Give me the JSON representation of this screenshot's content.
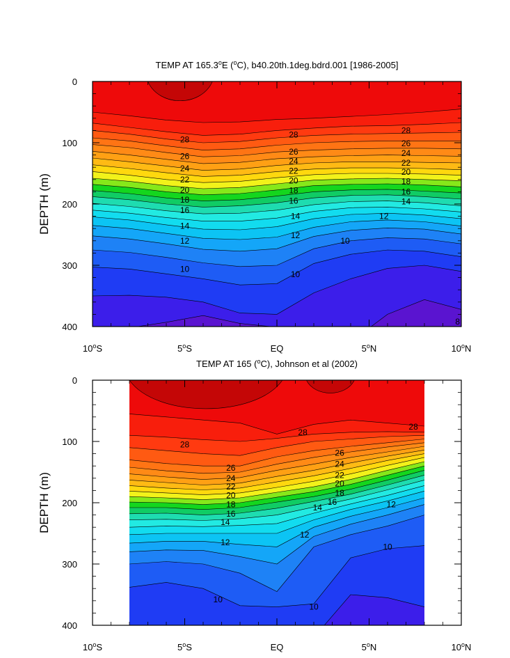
{
  "chart_data": [
    {
      "type": "contour",
      "title": "TEMP AT 165.3°E (°C), b40.20th.1deg.bdrd.001 [1986-2005]",
      "title_parts": {
        "pre": "TEMP AT 165.3",
        "sup1": "o",
        "mid": "E (",
        "sup2": "o",
        "post": "C), b40.20th.1deg.bdrd.001 [1986-2005]"
      },
      "ylabel": "DEPTH (m)",
      "xlim": [
        -10,
        10
      ],
      "ylim": [
        0,
        400
      ],
      "y_reversed": true,
      "data_xrange": [
        -10,
        10
      ],
      "y_ticks": [
        0,
        100,
        200,
        300,
        400
      ],
      "x_ticks": [
        {
          "value": -10,
          "num": "10",
          "hemi": "S"
        },
        {
          "value": -5,
          "num": "5",
          "hemi": "S"
        },
        {
          "value": 0,
          "num": "EQ",
          "hemi": ""
        },
        {
          "value": 5,
          "num": "5",
          "hemi": "N"
        },
        {
          "value": 10,
          "num": "10",
          "hemi": "N"
        }
      ],
      "contour_interval": 1,
      "contour_x": [
        -10,
        -8,
        -6,
        -4,
        -2,
        0,
        2,
        4,
        6,
        8,
        10
      ],
      "contour_levels": [
        {
          "level": 29,
          "depth": [
            50,
            56,
            63,
            67,
            66,
            62,
            60,
            57,
            54,
            50,
            45
          ]
        },
        {
          "level": 28,
          "depth": [
            68,
            75,
            82,
            88,
            86,
            80,
            76,
            73,
            72,
            70,
            67
          ]
        },
        {
          "level": 27,
          "depth": [
            80,
            86,
            94,
            100,
            98,
            92,
            88,
            86,
            85,
            84,
            83
          ]
        },
        {
          "level": 26,
          "depth": [
            92,
            97,
            105,
            112,
            110,
            104,
            100,
            98,
            97,
            97,
            97
          ]
        },
        {
          "level": 25,
          "depth": [
            103,
            108,
            116,
            123,
            121,
            115,
            112,
            110,
            109,
            109,
            110
          ]
        },
        {
          "level": 24,
          "depth": [
            114,
            120,
            127,
            134,
            132,
            126,
            123,
            121,
            120,
            121,
            122
          ]
        },
        {
          "level": 23,
          "depth": [
            125,
            131,
            138,
            145,
            143,
            137,
            133,
            131,
            131,
            132,
            133
          ]
        },
        {
          "level": 22,
          "depth": [
            136,
            142,
            149,
            155,
            153,
            147,
            143,
            141,
            141,
            142,
            144
          ]
        },
        {
          "level": 21,
          "depth": [
            147,
            153,
            160,
            165,
            163,
            157,
            152,
            150,
            150,
            151,
            153
          ]
        },
        {
          "level": 20,
          "depth": [
            158,
            163,
            170,
            175,
            173,
            167,
            161,
            159,
            158,
            160,
            162
          ]
        },
        {
          "level": 19,
          "depth": [
            168,
            173,
            180,
            185,
            183,
            177,
            170,
            168,
            167,
            169,
            172
          ]
        },
        {
          "level": 18,
          "depth": [
            178,
            183,
            190,
            195,
            193,
            187,
            180,
            177,
            176,
            179,
            182
          ]
        },
        {
          "level": 17,
          "depth": [
            188,
            193,
            200,
            205,
            203,
            198,
            190,
            186,
            185,
            188,
            192
          ]
        },
        {
          "level": 16,
          "depth": [
            199,
            204,
            211,
            216,
            215,
            210,
            201,
            196,
            195,
            198,
            203
          ]
        },
        {
          "level": 15,
          "depth": [
            210,
            215,
            222,
            228,
            228,
            223,
            212,
            206,
            205,
            208,
            213
          ]
        },
        {
          "level": 14,
          "depth": [
            221,
            226,
            234,
            241,
            242,
            237,
            224,
            217,
            215,
            218,
            224
          ]
        },
        {
          "level": 13,
          "depth": [
            235,
            240,
            248,
            256,
            258,
            254,
            238,
            229,
            226,
            229,
            236
          ]
        },
        {
          "level": 12,
          "depth": [
            252,
            257,
            265,
            274,
            277,
            273,
            253,
            243,
            239,
            241,
            249
          ]
        },
        {
          "level": 11,
          "depth": [
            275,
            279,
            287,
            296,
            302,
            300,
            273,
            260,
            255,
            257,
            265
          ]
        },
        {
          "level": 10,
          "depth": [
            303,
            306,
            314,
            322,
            332,
            330,
            297,
            282,
            275,
            277,
            286
          ]
        },
        {
          "level": 9,
          "depth": [
            350,
            349,
            352,
            360,
            378,
            380,
            345,
            322,
            305,
            300,
            310
          ]
        },
        {
          "level": 8,
          "depth": [
            405,
            402,
            393,
            382,
            395,
            401,
            408,
            440,
            380,
            356,
            372
          ]
        }
      ],
      "contour_labels": [
        {
          "text": "28",
          "x": -5.0,
          "y": 95
        },
        {
          "text": "28",
          "x": 0.9,
          "y": 87
        },
        {
          "text": "28",
          "x": 7.0,
          "y": 80
        },
        {
          "text": "26",
          "x": -5.0,
          "y": 122
        },
        {
          "text": "26",
          "x": 0.9,
          "y": 115
        },
        {
          "text": "26",
          "x": 7.0,
          "y": 101
        },
        {
          "text": "24",
          "x": -5.0,
          "y": 142
        },
        {
          "text": "24",
          "x": 0.9,
          "y": 130
        },
        {
          "text": "24",
          "x": 7.0,
          "y": 117
        },
        {
          "text": "22",
          "x": -5.0,
          "y": 160
        },
        {
          "text": "22",
          "x": 0.9,
          "y": 146
        },
        {
          "text": "22",
          "x": 7.0,
          "y": 133
        },
        {
          "text": "20",
          "x": -5.0,
          "y": 177
        },
        {
          "text": "20",
          "x": 0.9,
          "y": 162
        },
        {
          "text": "20",
          "x": 7.0,
          "y": 148
        },
        {
          "text": "18",
          "x": -5.0,
          "y": 193
        },
        {
          "text": "18",
          "x": 0.9,
          "y": 178
        },
        {
          "text": "18",
          "x": 7.0,
          "y": 163
        },
        {
          "text": "16",
          "x": -5.0,
          "y": 210
        },
        {
          "text": "16",
          "x": 0.9,
          "y": 195
        },
        {
          "text": "16",
          "x": 7.0,
          "y": 180
        },
        {
          "text": "14",
          "x": -5.0,
          "y": 236
        },
        {
          "text": "14",
          "x": 1.0,
          "y": 220
        },
        {
          "text": "14",
          "x": 7.0,
          "y": 196
        },
        {
          "text": "12",
          "x": -5.0,
          "y": 260
        },
        {
          "text": "12",
          "x": 1.0,
          "y": 251
        },
        {
          "text": "12",
          "x": 5.8,
          "y": 220
        },
        {
          "text": "10",
          "x": -5.0,
          "y": 306
        },
        {
          "text": "10",
          "x": 1.0,
          "y": 315
        },
        {
          "text": "10",
          "x": 3.7,
          "y": 260
        },
        {
          "text": "8",
          "x": 9.8,
          "y": 392
        }
      ],
      "warm_patch": {
        "level": 30,
        "x": [
          -7.0,
          -3.5
        ],
        "max_depth": 42
      }
    },
    {
      "type": "contour",
      "title": "TEMP AT 165 (°C), Johnson et al (2002)",
      "title_parts": {
        "pre": "TEMP AT 165 (",
        "sup1": "o",
        "mid": "C), Johnson et al (2002)",
        "sup2": "",
        "post": ""
      },
      "ylabel": "DEPTH (m)",
      "xlim": [
        -10,
        10
      ],
      "ylim": [
        0,
        400
      ],
      "y_reversed": true,
      "data_xrange": [
        -8,
        8
      ],
      "y_ticks": [
        0,
        100,
        200,
        300,
        400
      ],
      "x_ticks": [
        {
          "value": -10,
          "num": "10",
          "hemi": "S"
        },
        {
          "value": -5,
          "num": "5",
          "hemi": "S"
        },
        {
          "value": 0,
          "num": "EQ",
          "hemi": ""
        },
        {
          "value": 5,
          "num": "5",
          "hemi": "N"
        },
        {
          "value": 10,
          "num": "10",
          "hemi": "N"
        }
      ],
      "contour_interval": 1,
      "contour_x": [
        -8,
        -6,
        -4,
        -2,
        0,
        2,
        4,
        6,
        8
      ],
      "contour_levels": [
        {
          "level": 29,
          "depth": [
            55,
            60,
            65,
            70,
            88,
            72,
            65,
            70,
            75
          ]
        },
        {
          "level": 28,
          "depth": [
            90,
            93,
            97,
            100,
            95,
            88,
            85,
            84,
            85
          ]
        },
        {
          "level": 27,
          "depth": [
            110,
            115,
            120,
            123,
            110,
            100,
            96,
            92,
            90
          ]
        },
        {
          "level": 26,
          "depth": [
            130,
            136,
            140,
            140,
            125,
            115,
            108,
            102,
            96
          ]
        },
        {
          "level": 25,
          "depth": [
            142,
            148,
            152,
            150,
            137,
            126,
            117,
            109,
            102
          ]
        },
        {
          "level": 24,
          "depth": [
            153,
            158,
            162,
            159,
            147,
            137,
            126,
            117,
            108
          ]
        },
        {
          "level": 23,
          "depth": [
            163,
            167,
            171,
            168,
            157,
            147,
            135,
            124,
            114
          ]
        },
        {
          "level": 22,
          "depth": [
            172,
            176,
            179,
            176,
            166,
            156,
            144,
            131,
            120
          ]
        },
        {
          "level": 21,
          "depth": [
            181,
            184,
            187,
            184,
            175,
            165,
            153,
            139,
            126
          ]
        },
        {
          "level": 20,
          "depth": [
            190,
            192,
            195,
            192,
            183,
            174,
            162,
            147,
            133
          ]
        },
        {
          "level": 19,
          "depth": [
            199,
            200,
            203,
            200,
            191,
            182,
            170,
            155,
            140
          ]
        },
        {
          "level": 18,
          "depth": [
            208,
            208,
            211,
            208,
            199,
            190,
            178,
            163,
            147
          ]
        },
        {
          "level": 17,
          "depth": [
            218,
            217,
            220,
            217,
            209,
            198,
            186,
            171,
            155
          ]
        },
        {
          "level": 16,
          "depth": [
            228,
            227,
            229,
            226,
            220,
            207,
            194,
            179,
            163
          ]
        },
        {
          "level": 15,
          "depth": [
            240,
            238,
            239,
            237,
            234,
            217,
            202,
            188,
            172
          ]
        },
        {
          "level": 14,
          "depth": [
            252,
            250,
            250,
            250,
            250,
            228,
            211,
            197,
            181
          ]
        },
        {
          "level": 13,
          "depth": [
            266,
            263,
            263,
            268,
            272,
            240,
            222,
            208,
            192
          ]
        },
        {
          "level": 12,
          "depth": [
            280,
            277,
            278,
            288,
            300,
            255,
            235,
            220,
            203
          ]
        },
        {
          "level": 11,
          "depth": [
            300,
            296,
            300,
            315,
            345,
            272,
            252,
            238,
            220
          ]
        },
        {
          "level": 10,
          "depth": [
            338,
            330,
            340,
            368,
            370,
            365,
            290,
            275,
            270
          ]
        },
        {
          "level": 9,
          "depth": [
            420,
            420,
            420,
            420,
            420,
            420,
            350,
            355,
            370
          ]
        }
      ],
      "contour_labels": [
        {
          "text": "28",
          "x": -5.0,
          "y": 105
        },
        {
          "text": "28",
          "x": 1.4,
          "y": 85
        },
        {
          "text": "28",
          "x": 7.4,
          "y": 76
        },
        {
          "text": "26",
          "x": -2.5,
          "y": 143
        },
        {
          "text": "26",
          "x": 3.4,
          "y": 119
        },
        {
          "text": "24",
          "x": -2.5,
          "y": 160
        },
        {
          "text": "24",
          "x": 3.4,
          "y": 137
        },
        {
          "text": "22",
          "x": -2.5,
          "y": 174
        },
        {
          "text": "22",
          "x": 3.4,
          "y": 155
        },
        {
          "text": "20",
          "x": -2.5,
          "y": 188
        },
        {
          "text": "20",
          "x": 3.4,
          "y": 169
        },
        {
          "text": "18",
          "x": -2.5,
          "y": 203
        },
        {
          "text": "18",
          "x": 3.4,
          "y": 184
        },
        {
          "text": "16",
          "x": -2.5,
          "y": 218
        },
        {
          "text": "16",
          "x": 3.0,
          "y": 199
        },
        {
          "text": "14",
          "x": -2.8,
          "y": 232
        },
        {
          "text": "14",
          "x": 2.2,
          "y": 208
        },
        {
          "text": "12",
          "x": -2.8,
          "y": 265
        },
        {
          "text": "12",
          "x": 1.5,
          "y": 252
        },
        {
          "text": "12",
          "x": 6.2,
          "y": 203
        },
        {
          "text": "10",
          "x": -3.2,
          "y": 358
        },
        {
          "text": "10",
          "x": 2.0,
          "y": 370
        },
        {
          "text": "10",
          "x": 6.0,
          "y": 272
        }
      ],
      "warm_patch": {
        "level": 30,
        "x": [
          -8.0,
          0.3
        ],
        "max_depth": 62
      },
      "warm_patch_2": {
        "level": 30,
        "x": [
          1.6,
          4.2
        ],
        "max_depth": 28
      }
    }
  ]
}
